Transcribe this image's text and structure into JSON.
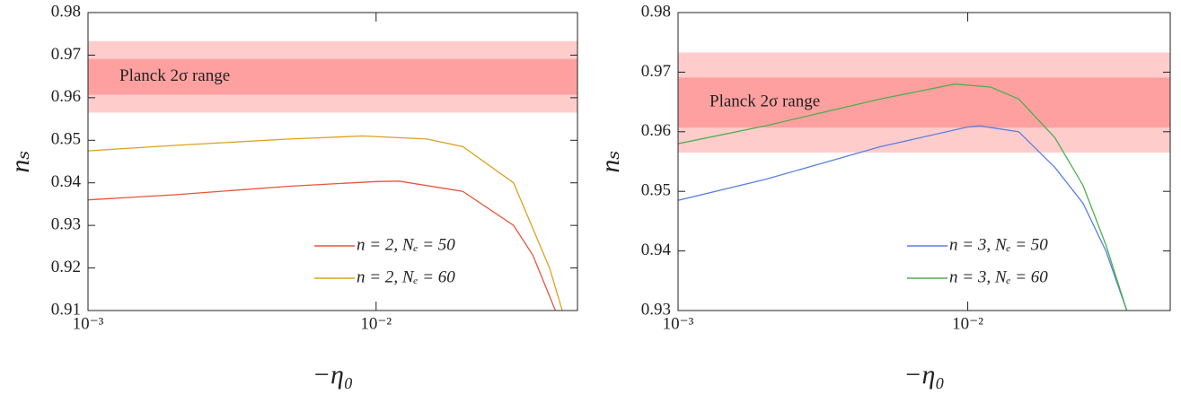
{
  "chart_data": [
    {
      "type": "line",
      "xscale": "log",
      "xlim": [
        0.001,
        0.05
      ],
      "ylim": [
        0.91,
        0.98
      ],
      "xticks": [
        {
          "value": 0.001,
          "label": "10⁻³"
        },
        {
          "value": 0.01,
          "label": "10⁻²"
        }
      ],
      "yticks": [
        0.91,
        0.92,
        0.93,
        0.94,
        0.95,
        0.96,
        0.97,
        0.98
      ],
      "xlabel": "−η₀",
      "ylabel": "nₛ",
      "legend": "lower right",
      "bands": [
        {
          "range": [
            0.9565,
            0.9733
          ],
          "color": "#ffcccc"
        },
        {
          "range": [
            0.9607,
            0.9691
          ],
          "color": "#ffa0a0"
        }
      ],
      "band_label": "Planck 2σ range",
      "series": [
        {
          "name": "n = 2, Nₑ = 50",
          "color": "#e8553a",
          "x": [
            0.001,
            0.002,
            0.005,
            0.01,
            0.012,
            0.02,
            0.03,
            0.035,
            0.0419
          ],
          "values": [
            0.936,
            0.9372,
            0.9392,
            0.9403,
            0.9404,
            0.938,
            0.93,
            0.923,
            0.91
          ]
        },
        {
          "name": "n = 2, Nₑ = 60",
          "color": "#e0a020",
          "x": [
            0.001,
            0.002,
            0.005,
            0.009,
            0.015,
            0.02,
            0.03,
            0.04,
            0.0443
          ],
          "values": [
            0.9475,
            0.9488,
            0.9503,
            0.951,
            0.9503,
            0.9485,
            0.94,
            0.92,
            0.91
          ]
        }
      ]
    },
    {
      "type": "line",
      "xscale": "log",
      "xlim": [
        0.001,
        0.05
      ],
      "ylim": [
        0.93,
        0.98
      ],
      "xticks": [
        {
          "value": 0.001,
          "label": "10⁻³"
        },
        {
          "value": 0.01,
          "label": "10⁻²"
        }
      ],
      "yticks": [
        0.93,
        0.94,
        0.95,
        0.96,
        0.97,
        0.98
      ],
      "xlabel": "−η₀",
      "ylabel": "nₛ",
      "legend": "lower right",
      "bands": [
        {
          "range": [
            0.9565,
            0.9733
          ],
          "color": "#ffcccc"
        },
        {
          "range": [
            0.9607,
            0.9691
          ],
          "color": "#ffa0a0"
        }
      ],
      "band_label": "Planck 2σ range",
      "series": [
        {
          "name": "n = 3, Nₑ = 50",
          "color": "#5a7fe0",
          "x": [
            0.001,
            0.002,
            0.005,
            0.01,
            0.011,
            0.015,
            0.02,
            0.025,
            0.03,
            0.0354
          ],
          "values": [
            0.9485,
            0.952,
            0.9575,
            0.9608,
            0.961,
            0.96,
            0.954,
            0.948,
            0.94,
            0.93
          ]
        },
        {
          "name": "n = 3, Nₑ = 60",
          "color": "#4caf50",
          "x": [
            0.001,
            0.002,
            0.005,
            0.009,
            0.012,
            0.015,
            0.02,
            0.025,
            0.03,
            0.0354
          ],
          "values": [
            0.958,
            0.961,
            0.9655,
            0.968,
            0.9675,
            0.9655,
            0.959,
            0.951,
            0.941,
            0.93
          ]
        }
      ]
    }
  ]
}
